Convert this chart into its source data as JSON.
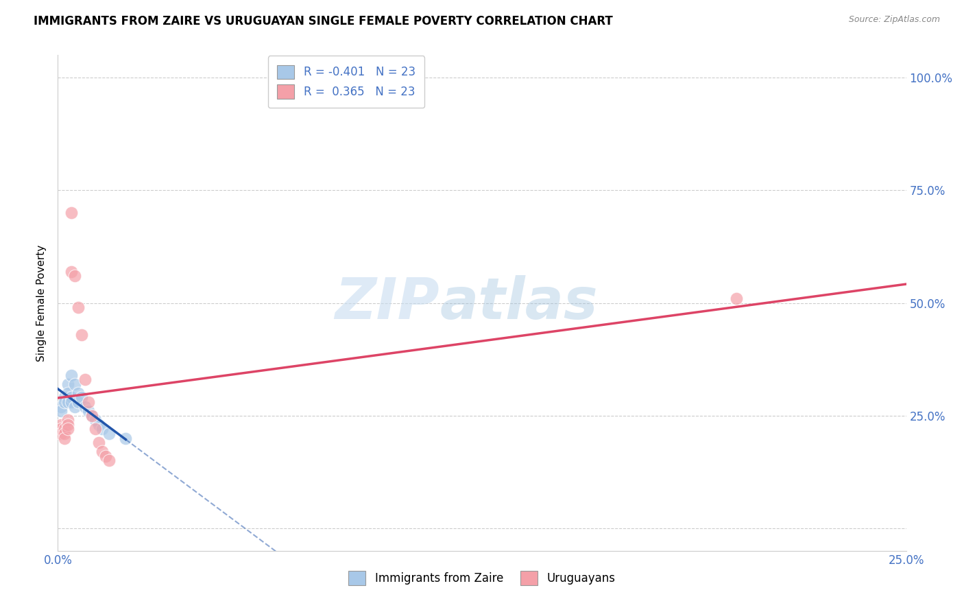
{
  "title": "IMMIGRANTS FROM ZAIRE VS URUGUAYAN SINGLE FEMALE POVERTY CORRELATION CHART",
  "source": "Source: ZipAtlas.com",
  "ylabel": "Single Female Poverty",
  "legend_label1": "Immigrants from Zaire",
  "legend_label2": "Uruguayans",
  "r1": "-0.401",
  "n1": "23",
  "r2": "0.365",
  "n2": "23",
  "xlim": [
    0.0,
    0.25
  ],
  "ylim": [
    -0.05,
    1.05
  ],
  "blue_color": "#a8c8e8",
  "pink_color": "#f4a0a8",
  "blue_line_color": "#2255aa",
  "pink_line_color": "#dd4466",
  "background_color": "#ffffff",
  "watermark_zip": "ZIP",
  "watermark_atlas": "atlas",
  "blue_x": [
    0.001,
    0.001,
    0.002,
    0.002,
    0.003,
    0.003,
    0.003,
    0.004,
    0.004,
    0.004,
    0.005,
    0.005,
    0.006,
    0.006,
    0.007,
    0.008,
    0.009,
    0.01,
    0.011,
    0.012,
    0.013,
    0.015,
    0.02
  ],
  "blue_y": [
    0.27,
    0.26,
    0.29,
    0.28,
    0.32,
    0.3,
    0.28,
    0.34,
    0.29,
    0.28,
    0.32,
    0.27,
    0.3,
    0.28,
    0.29,
    0.27,
    0.26,
    0.25,
    0.24,
    0.23,
    0.22,
    0.21,
    0.2
  ],
  "pink_x": [
    0.001,
    0.001,
    0.001,
    0.002,
    0.002,
    0.002,
    0.003,
    0.003,
    0.003,
    0.004,
    0.004,
    0.005,
    0.006,
    0.007,
    0.008,
    0.009,
    0.01,
    0.011,
    0.012,
    0.013,
    0.014,
    0.015,
    0.2
  ],
  "pink_y": [
    0.23,
    0.22,
    0.21,
    0.22,
    0.21,
    0.2,
    0.24,
    0.23,
    0.22,
    0.57,
    0.7,
    0.56,
    0.49,
    0.43,
    0.33,
    0.28,
    0.25,
    0.22,
    0.19,
    0.17,
    0.16,
    0.15,
    0.51
  ],
  "title_fontsize": 12,
  "axis_color": "#4472c4",
  "source_color": "#888888"
}
